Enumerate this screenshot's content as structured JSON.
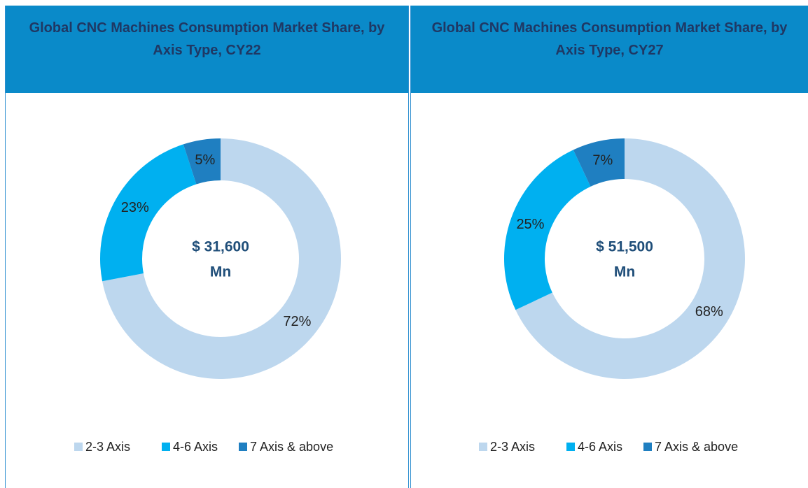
{
  "chart_data": [
    {
      "type": "pie",
      "title": "Global CNC Machines Consumption Market Share, by Axis Type, CY22",
      "center_text": [
        "$ 31,600",
        "Mn"
      ],
      "categories": [
        "2-3 Axis",
        "4-6 Axis",
        "7 Axis & above"
      ],
      "values": [
        72,
        23,
        5
      ],
      "value_labels": [
        "72%",
        "23%",
        "5%"
      ],
      "colors": [
        "#bdd7ee",
        "#00b0f0",
        "#1f7fc1"
      ],
      "legend": "bottom"
    },
    {
      "type": "pie",
      "title": "Global CNC Machines Consumption Market Share, by Axis Type, CY27",
      "center_text": [
        "$ 51,500",
        "Mn"
      ],
      "categories": [
        "2-3 Axis",
        "4-6 Axis",
        "7 Axis & above"
      ],
      "values": [
        68,
        25,
        7
      ],
      "value_labels": [
        "68%",
        "25%",
        "7%"
      ],
      "colors": [
        "#bdd7ee",
        "#00b0f0",
        "#1f7fc1"
      ],
      "legend": "bottom"
    }
  ]
}
